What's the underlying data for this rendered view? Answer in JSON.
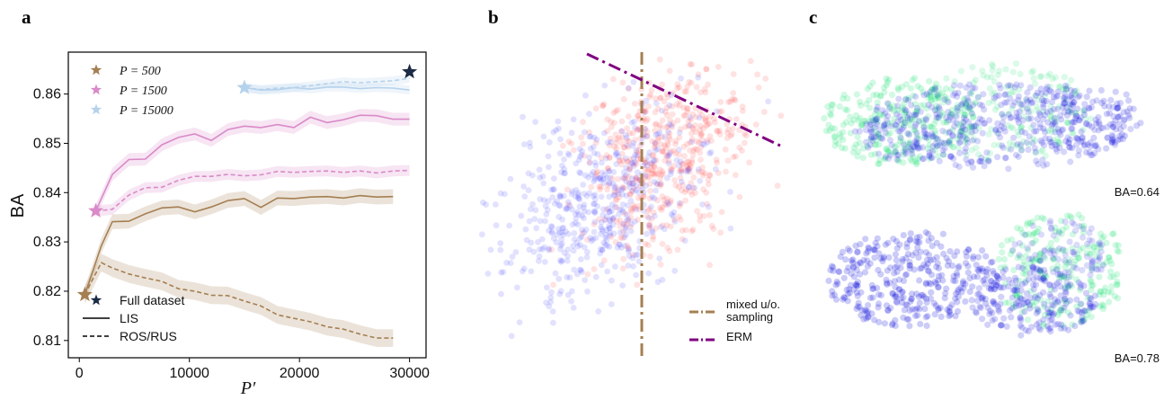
{
  "panels": {
    "a": "a",
    "b": "b",
    "c": "c"
  },
  "chart_data": [
    {
      "type": "line",
      "panel": "a",
      "xlabel": "P′",
      "ylabel": "BA",
      "xlim": [
        -1000,
        31500
      ],
      "ylim": [
        0.8065,
        0.8685
      ],
      "xticks": [
        0,
        10000,
        20000,
        30000
      ],
      "xtick_labels": [
        "0",
        "10000",
        "20000",
        "30000"
      ],
      "yticks": [
        0.81,
        0.82,
        0.83,
        0.84,
        0.85,
        0.86
      ],
      "ytick_labels": [
        "0.81",
        "0.82",
        "0.83",
        "0.84",
        "0.85",
        "0.86"
      ],
      "legend": {
        "placement": "top-left",
        "entries": [
          {
            "label": "P = 500",
            "color": "#a57f52",
            "marker": "star"
          },
          {
            "label": "P = 1500",
            "color": "#d98ac8",
            "marker": "star"
          },
          {
            "label": "P = 15000",
            "color": "#b5d2ec",
            "marker": "star"
          }
        ]
      },
      "legend2": {
        "placement": "bottom-left",
        "entries": [
          {
            "label": "Full dataset",
            "marker": "star",
            "color": "#1b2a45"
          },
          {
            "label": "LIS",
            "style": "solid"
          },
          {
            "label": "ROS/RUS",
            "style": "dashed"
          }
        ]
      },
      "series": [
        {
          "label": "P = 500",
          "method": "LIS",
          "color": "#a57f52",
          "style": "solid",
          "x": [
            500,
            2000,
            3000,
            4500,
            6000,
            7500,
            9000,
            10500,
            12000,
            13500,
            15000,
            16500,
            18000,
            19500,
            21000,
            22500,
            24000,
            25500,
            27000,
            28500
          ],
          "y": [
            0.8193,
            0.8292,
            0.8341,
            0.8342,
            0.8357,
            0.8369,
            0.8371,
            0.8361,
            0.8371,
            0.8384,
            0.8388,
            0.837,
            0.8389,
            0.8388,
            0.8391,
            0.8392,
            0.8389,
            0.8394,
            0.8391,
            0.8392
          ],
          "band": 0.0015
        },
        {
          "label": "P = 500",
          "method": "ROS/RUS",
          "color": "#a57f52",
          "style": "dashed",
          "x": [
            500,
            2000,
            3000,
            4500,
            6000,
            7500,
            9000,
            10500,
            12000,
            13500,
            15000,
            16500,
            18000,
            19500,
            21000,
            22500,
            24000,
            25500,
            27000,
            28500
          ],
          "y": [
            0.8193,
            0.8258,
            0.8247,
            0.8235,
            0.8227,
            0.822,
            0.8205,
            0.82,
            0.8192,
            0.8191,
            0.818,
            0.817,
            0.8152,
            0.8145,
            0.8138,
            0.8128,
            0.8123,
            0.8113,
            0.8105,
            0.8105
          ],
          "band": 0.0018
        },
        {
          "label": "P = 1500",
          "method": "LIS",
          "color": "#d98ac8",
          "style": "solid",
          "x": [
            1500,
            3000,
            4500,
            6000,
            7500,
            9000,
            10500,
            12000,
            13500,
            15000,
            16500,
            18000,
            19500,
            21000,
            22500,
            24000,
            25500,
            27000,
            28500,
            30000
          ],
          "y": [
            0.8363,
            0.8437,
            0.8467,
            0.8468,
            0.8497,
            0.8512,
            0.8519,
            0.8506,
            0.8528,
            0.8535,
            0.8532,
            0.8538,
            0.8532,
            0.8553,
            0.8542,
            0.8548,
            0.8557,
            0.8556,
            0.8549,
            0.8549
          ],
          "band": 0.0013
        },
        {
          "label": "P = 1500",
          "method": "ROS/RUS",
          "color": "#d98ac8",
          "style": "dashed",
          "x": [
            1500,
            3000,
            4500,
            6000,
            7500,
            9000,
            10500,
            12000,
            13500,
            15000,
            16500,
            18000,
            19500,
            21000,
            22500,
            24000,
            25500,
            27000,
            28500,
            30000
          ],
          "y": [
            0.8363,
            0.8366,
            0.8395,
            0.841,
            0.8411,
            0.8425,
            0.8433,
            0.8433,
            0.8437,
            0.8434,
            0.8436,
            0.8443,
            0.8441,
            0.8443,
            0.8444,
            0.8441,
            0.8444,
            0.844,
            0.8444,
            0.8445
          ],
          "band": 0.0011
        },
        {
          "label": "P = 15000",
          "method": "LIS",
          "color": "#b5d2ec",
          "style": "solid",
          "x": [
            15000,
            16500,
            18000,
            19500,
            21000,
            22500,
            24000,
            25500,
            27000,
            28500,
            30000
          ],
          "y": [
            0.8613,
            0.8608,
            0.8609,
            0.8613,
            0.861,
            0.8614,
            0.8614,
            0.8611,
            0.8613,
            0.8612,
            0.8608
          ],
          "band": 0.0009
        },
        {
          "label": "P = 15000",
          "method": "ROS/RUS",
          "color": "#b5d2ec",
          "style": "dashed",
          "x": [
            15000,
            16500,
            18000,
            19500,
            21000,
            22500,
            24000,
            25500,
            27000,
            28500,
            30000
          ],
          "y": [
            0.8613,
            0.8609,
            0.8612,
            0.8613,
            0.8617,
            0.8621,
            0.8625,
            0.8623,
            0.8625,
            0.8627,
            0.8632
          ],
          "band": 0.0009
        }
      ],
      "markers": [
        {
          "label": "P = 500",
          "x": 500,
          "y": 0.8193,
          "color": "#a57f52"
        },
        {
          "label": "P = 1500",
          "x": 1500,
          "y": 0.8363,
          "color": "#d98ac8"
        },
        {
          "label": "P = 15000",
          "x": 15000,
          "y": 0.8613,
          "color": "#b5d2ec"
        },
        {
          "label": "Full dataset",
          "x": 30000,
          "y": 0.8645,
          "color": "#1b2a45"
        }
      ]
    },
    {
      "type": "scatter",
      "panel": "b",
      "classes": [
        {
          "color": "#2020ff",
          "center": [
            -0.35,
            -0.1
          ],
          "spread": [
            0.45,
            0.35
          ]
        },
        {
          "color": "#ff2020",
          "center": [
            0.25,
            0.25
          ],
          "spread": [
            0.35,
            0.3
          ]
        }
      ],
      "legend": {
        "placement": "bottom-right",
        "entries": [
          {
            "label_lines": [
              "mixed u/o.",
              "sampling"
            ],
            "color": "#a57f52",
            "style": "dashdot"
          },
          {
            "label_lines": [
              "ERM"
            ],
            "color": "#800080",
            "style": "dashdot"
          }
        ]
      }
    },
    {
      "type": "scatter",
      "panel": "c",
      "subplots": [
        {
          "annotation": "BA=0.64",
          "colors": [
            "#00dd66",
            "#0000dd"
          ]
        },
        {
          "annotation": "BA=0.78",
          "colors": [
            "#00dd66",
            "#0000dd"
          ]
        }
      ]
    }
  ]
}
